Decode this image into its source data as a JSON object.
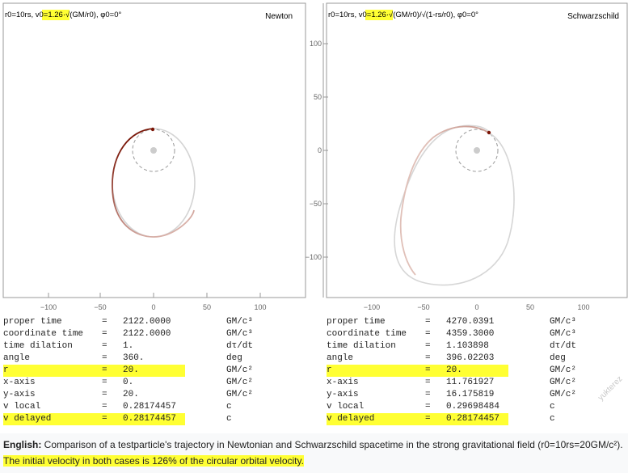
{
  "newton": {
    "title": "Newton",
    "params_prefix": "r0=10rs, ",
    "params_highlight": "v0=1.26",
    "params_suffix": "·√(GM/r0), φ0=0°",
    "x_ticks": [
      "−100",
      "−50",
      "0",
      "50",
      "100"
    ],
    "stats": [
      {
        "label": "proper time",
        "eq": "=",
        "value": "2122.0000",
        "unit": "GM/c³",
        "highlight": false
      },
      {
        "label": "coordinate time",
        "eq": "=",
        "value": "2122.0000",
        "unit": "GM/c³",
        "highlight": false
      },
      {
        "label": "time dilation",
        "eq": "=",
        "value": "1.",
        "unit": "dτ/dt",
        "highlight": false
      },
      {
        "label": "angle",
        "eq": "=",
        "value": "360.",
        "unit": "deg",
        "highlight": false
      },
      {
        "label": "r",
        "eq": "=",
        "value": "20.",
        "unit": "GM/c²",
        "highlight": true
      },
      {
        "label": "x-axis",
        "eq": "=",
        "value": "0.",
        "unit": "GM/c²",
        "highlight": false
      },
      {
        "label": "y-axis",
        "eq": "=",
        "value": "20.",
        "unit": "GM/c²",
        "highlight": false
      },
      {
        "label": "v local",
        "eq": "=",
        "value": "0.28174457",
        "unit": "c",
        "highlight": false
      },
      {
        "label": "v delayed",
        "eq": "=",
        "value": "0.28174457",
        "unit": "c",
        "highlight": true
      }
    ]
  },
  "schwarzschild": {
    "title": "Schwarzschild",
    "params_prefix": "r0=10rs, ",
    "params_highlight": "v0=1.26",
    "params_suffix": "·√(GM/r0)/√(1-rs/r0), φ0=0°",
    "x_ticks": [
      "−100",
      "−50",
      "0",
      "50",
      "100"
    ],
    "y_ticks": [
      "100",
      "50",
      "0",
      "−50",
      "−100"
    ],
    "stats": [
      {
        "label": "proper time",
        "eq": "=",
        "value": "4270.0391",
        "unit": "GM/c³",
        "highlight": false
      },
      {
        "label": "coordinate time",
        "eq": "=",
        "value": "4359.3000",
        "unit": "GM/c³",
        "highlight": false
      },
      {
        "label": "time dilation",
        "eq": "=",
        "value": "1.103898",
        "unit": "dτ/dt",
        "highlight": false
      },
      {
        "label": "angle",
        "eq": "=",
        "value": "396.02203",
        "unit": "deg",
        "highlight": false
      },
      {
        "label": "r",
        "eq": "=",
        "value": "20.",
        "unit": "GM/c²",
        "highlight": true
      },
      {
        "label": "x-axis",
        "eq": "=",
        "value": "11.761927",
        "unit": "GM/c²",
        "highlight": false
      },
      {
        "label": "y-axis",
        "eq": "=",
        "value": "16.175819",
        "unit": "GM/c²",
        "highlight": false
      },
      {
        "label": "v local",
        "eq": "=",
        "value": "0.29698484",
        "unit": "c",
        "highlight": false
      },
      {
        "label": "v delayed",
        "eq": "=",
        "value": "0.28174457",
        "unit": "c",
        "highlight": true
      }
    ]
  },
  "caption": {
    "lang": "English:",
    "text": " Comparison of a testparticle's trajectory in Newtonian and Schwarzschild spacetime in the strong gravitational field (r0=10rs=20GM/c²). ",
    "highlight": "The initial velocity in both cases is 126% of the circular orbital velocity."
  },
  "watermark": "yukterez",
  "colors": {
    "highlight": "#ffff33",
    "trail": "#8b1a0a",
    "faded": "#cccccc",
    "axis": "#888888"
  }
}
